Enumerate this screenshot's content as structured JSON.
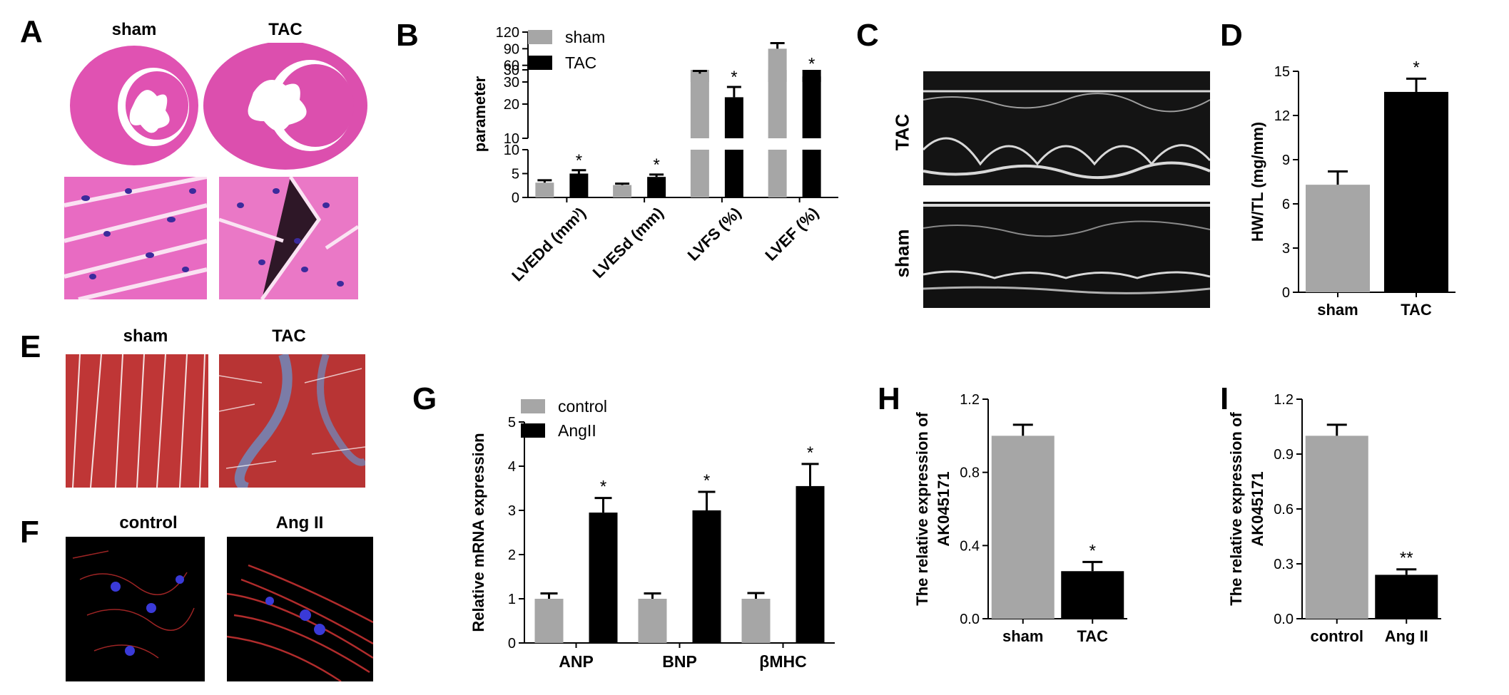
{
  "figure": {
    "panels": [
      {
        "letter": "A",
        "left_title": "sham",
        "right_title": "TAC"
      },
      {
        "letter": "B"
      },
      {
        "letter": "C",
        "top_label": "TAC",
        "bottom_label": "sham"
      },
      {
        "letter": "D"
      },
      {
        "letter": "E",
        "left_title": "sham",
        "right_title": "TAC"
      },
      {
        "letter": "F",
        "left_title": "control",
        "right_title": "Ang II"
      },
      {
        "letter": "G"
      },
      {
        "letter": "H"
      },
      {
        "letter": "I"
      }
    ]
  },
  "colors": {
    "grey": "#a6a6a6",
    "black": "#000000",
    "he_pink": "#e25fb7",
    "masson_red": "#c03a3a",
    "masson_blue": "#6b8fc4",
    "if_red": "#c42d2d",
    "if_blue": "#3a3ad8"
  },
  "chart_data": [
    {
      "id": "B",
      "type": "bar",
      "categories": [
        "LVEDd (mm⁾)",
        "LVESd (mm)",
        "LVFS (%)",
        "LVEF (%)"
      ],
      "ylabel": "parameter",
      "legend": [
        "sham",
        "TAC"
      ],
      "legend_placement": "top-left",
      "axis_breaks": true,
      "segments": [
        {
          "ylim": [
            0,
            10
          ],
          "ticks": [
            "0",
            "5",
            "10"
          ]
        },
        {
          "ylim": [
            10,
            30
          ],
          "ticks": [
            "10",
            "20",
            "30"
          ]
        },
        {
          "ylim": [
            30,
            120
          ],
          "ticks": [
            "30",
            "60",
            "90",
            "120"
          ]
        }
      ],
      "series": [
        {
          "name": "sham",
          "values": [
            3.1,
            2.6,
            45,
            90
          ],
          "errors": [
            0.5,
            0.3,
            5,
            10
          ]
        },
        {
          "name": "TAC",
          "values": [
            5.0,
            4.3,
            22,
            40
          ],
          "errors": [
            0.7,
            0.5,
            3,
            5
          ]
        }
      ],
      "annotations": [
        "",
        "",
        "",
        "",
        "*",
        "*",
        "*",
        "*"
      ]
    },
    {
      "id": "D",
      "type": "bar",
      "categories": [
        "sham",
        "TAC"
      ],
      "values": [
        7.3,
        13.6
      ],
      "errors": [
        0.9,
        0.9
      ],
      "ylabel": "HW/TL (mg/mm)",
      "ylim": [
        0,
        15
      ],
      "yticks": [
        "0",
        "3",
        "6",
        "9",
        "12",
        "15"
      ],
      "annotations": [
        "",
        "*"
      ]
    },
    {
      "id": "G",
      "type": "bar",
      "categories": [
        "ANP",
        "BNP",
        "βMHC"
      ],
      "ylabel": "Relative mRNA expression",
      "ylim": [
        0,
        5
      ],
      "yticks": [
        "0",
        "1",
        "2",
        "3",
        "4",
        "5"
      ],
      "legend": [
        "control",
        "AngII"
      ],
      "legend_placement": "top-left",
      "series": [
        {
          "name": "control",
          "values": [
            1.0,
            1.0,
            1.0
          ],
          "errors": [
            0.12,
            0.12,
            0.13
          ]
        },
        {
          "name": "AngII",
          "values": [
            2.95,
            3.0,
            3.55
          ],
          "errors": [
            0.33,
            0.42,
            0.5
          ]
        }
      ],
      "annotations": [
        "",
        "",
        "",
        "*",
        "*",
        "*"
      ]
    },
    {
      "id": "H",
      "type": "bar",
      "categories": [
        "sham",
        "TAC"
      ],
      "values": [
        1.0,
        0.26
      ],
      "errors": [
        0.06,
        0.05
      ],
      "ylabel": "The relative expression of AK045171",
      "ylim": [
        0,
        1.2
      ],
      "yticks": [
        "0.0",
        "0.4",
        "0.8",
        "1.2"
      ],
      "annotations": [
        "",
        "*"
      ]
    },
    {
      "id": "I",
      "type": "bar",
      "categories": [
        "control",
        "Ang II"
      ],
      "values": [
        1.0,
        0.24
      ],
      "errors": [
        0.06,
        0.03
      ],
      "ylabel": "The relative expression of AK045171",
      "ylim": [
        0,
        1.2
      ],
      "yticks": [
        "0.0",
        "0.3",
        "0.6",
        "0.9",
        "1.2"
      ],
      "annotations": [
        "",
        "**"
      ]
    }
  ]
}
